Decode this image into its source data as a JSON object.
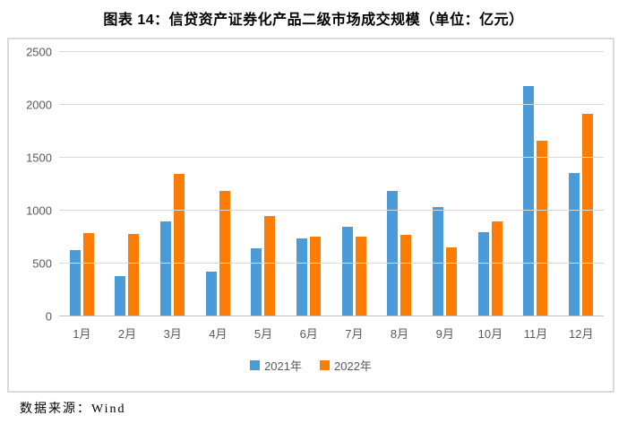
{
  "title": "图表 14：信贷资产证券化产品二级市场成交规模（单位：亿元）",
  "source_note": "数据来源：Wind",
  "colors": {
    "series_2021": "#4a9bd8",
    "series_2022": "#fb7d05",
    "axis_text": "#595959",
    "gridline": "#d9d9d9",
    "baseline": "#bfbfbf",
    "frame_border": "#d9d9d9"
  },
  "chart_data": {
    "type": "bar",
    "title": "图表 14：信贷资产证券化产品二级市场成交规模（单位：亿元）",
    "categories": [
      "1月",
      "2月",
      "3月",
      "4月",
      "5月",
      "6月",
      "7月",
      "8月",
      "9月",
      "10月",
      "11月",
      "12月"
    ],
    "series": [
      {
        "key": "2021",
        "name": "2021年",
        "color": "#4a9bd8",
        "values": [
          625,
          385,
          900,
          425,
          640,
          735,
          845,
          1190,
          1030,
          800,
          2175,
          1355
        ]
      },
      {
        "key": "2022",
        "name": "2022年",
        "color": "#fb7d05",
        "values": [
          790,
          780,
          1350,
          1190,
          950,
          755,
          755,
          775,
          650,
          900,
          1660,
          1915
        ]
      }
    ],
    "xlabel": "",
    "ylabel": "",
    "ylim": [
      0,
      2500
    ],
    "yticks": [
      0,
      500,
      1000,
      1500,
      2000,
      2500
    ],
    "grid": true,
    "legend_position": "bottom"
  }
}
